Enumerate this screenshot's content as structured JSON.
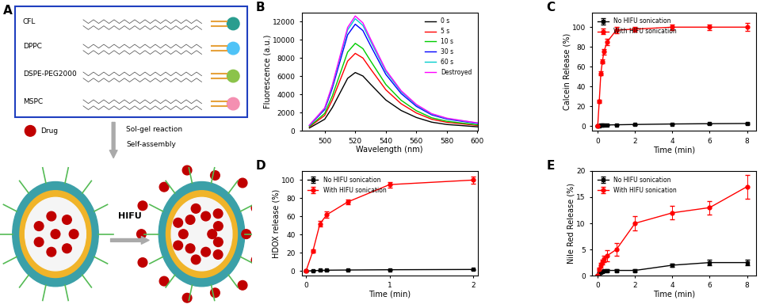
{
  "diagram": {
    "panel": "A",
    "components": [
      "CFL",
      "DPPC",
      "DSPE-PEG2000",
      "MSPC"
    ],
    "drug": "Drug",
    "process": [
      "Sol-gel reaction",
      "Self-assembly"
    ],
    "trigger": "HIFU"
  },
  "chart_data": [
    {
      "panel": "B",
      "type": "line",
      "x_label": "Wavelength (nm)",
      "y_label": "Fluorescence (a.u.)",
      "x": [
        490,
        500,
        505,
        510,
        515,
        520,
        525,
        530,
        540,
        550,
        560,
        570,
        580,
        590,
        600
      ],
      "xlim": [
        485,
        600
      ],
      "xticks": [
        500,
        520,
        540,
        560,
        580,
        600
      ],
      "ylim": [
        0,
        13000
      ],
      "yticks": [
        0,
        2000,
        4000,
        6000,
        8000,
        10000,
        12000
      ],
      "legend": "upper right",
      "marker": "none",
      "series": [
        {
          "name": "0 s",
          "color": "#000000",
          "values": [
            320,
            1280,
            2560,
            4160,
            5760,
            6400,
            6020,
            5120,
            3390,
            2240,
            1470,
            960,
            700,
            580,
            450
          ]
        },
        {
          "name": "5 s",
          "color": "#ff0000",
          "values": [
            430,
            1700,
            3400,
            5530,
            7650,
            8500,
            7990,
            6800,
            4510,
            2980,
            1960,
            1280,
            940,
            770,
            600
          ]
        },
        {
          "name": "10 s",
          "color": "#00cc00",
          "values": [
            480,
            1920,
            3840,
            6240,
            8640,
            9600,
            9020,
            7680,
            5090,
            3360,
            2210,
            1440,
            1060,
            860,
            670
          ]
        },
        {
          "name": "30 s",
          "color": "#0000ff",
          "values": [
            590,
            2340,
            4680,
            7610,
            10530,
            11700,
            11000,
            9360,
            6200,
            4100,
            2690,
            1760,
            1290,
            1050,
            820
          ]
        },
        {
          "name": "60 s",
          "color": "#00cccc",
          "values": [
            620,
            2460,
            4920,
            8000,
            11070,
            12300,
            11560,
            9840,
            6520,
            4310,
            2830,
            1850,
            1350,
            1110,
            860
          ]
        },
        {
          "name": "Destroyed",
          "color": "#ff00ff",
          "values": [
            630,
            2520,
            5040,
            8190,
            11340,
            12600,
            11840,
            10080,
            6680,
            4410,
            2900,
            1890,
            1390,
            1130,
            880
          ]
        }
      ]
    },
    {
      "panel": "C",
      "type": "line",
      "x_label": "Time (min)",
      "y_label": "Calcein Release (%)",
      "x": [
        0,
        0.083,
        0.167,
        0.25,
        0.33,
        0.5,
        1,
        2,
        4,
        6,
        8
      ],
      "xlim": [
        -0.3,
        8.5
      ],
      "xticks": [
        0,
        2,
        4,
        6,
        8
      ],
      "ylim": [
        -5,
        115
      ],
      "yticks": [
        0,
        20,
        40,
        60,
        80,
        100
      ],
      "legend": "upper left",
      "series": [
        {
          "name": "No HIFU sonication",
          "color": "#000000",
          "marker": "square",
          "values": [
            0,
            0.3,
            0.5,
            0.7,
            0.8,
            1,
            1.2,
            1.5,
            2,
            2.3,
            2.5
          ],
          "error": [
            0.2,
            0.2,
            0.2,
            0.3,
            0.3,
            0.3,
            0.3,
            0.4,
            0.4,
            0.5,
            0.5
          ]
        },
        {
          "name": "With HIFU sonication",
          "color": "#ff0000",
          "marker": "circle",
          "values": [
            0,
            25,
            53,
            65,
            75,
            85,
            97,
            98,
            100,
            100,
            100
          ],
          "error": [
            0.5,
            1.5,
            2,
            2,
            2.5,
            3,
            3,
            2.5,
            3,
            3,
            4
          ]
        }
      ]
    },
    {
      "panel": "D",
      "type": "line",
      "x_label": "Time (min)",
      "y_label": "HDOX release (%)",
      "x": [
        0,
        0.083,
        0.167,
        0.25,
        0.5,
        1,
        2
      ],
      "xlim": [
        -0.05,
        2.05
      ],
      "xticks": [
        0,
        1,
        2
      ],
      "ylim": [
        -5,
        110
      ],
      "yticks": [
        0,
        20,
        40,
        60,
        80,
        100
      ],
      "legend": "upper left",
      "series": [
        {
          "name": "No HIFU sonication",
          "color": "#000000",
          "marker": "square",
          "values": [
            0,
            0.5,
            0.8,
            1,
            1.2,
            1.5,
            1.8
          ],
          "error": [
            0.2,
            0.2,
            0.2,
            0.3,
            0.3,
            0.3,
            0.4
          ]
        },
        {
          "name": "With HIFU sonication",
          "color": "#ff0000",
          "marker": "circle",
          "values": [
            0,
            22,
            52,
            62,
            76,
            95,
            100
          ],
          "error": [
            0.5,
            2,
            3,
            3.5,
            2.5,
            3,
            4
          ]
        }
      ]
    },
    {
      "panel": "E",
      "type": "line",
      "x_label": "Time (min)",
      "y_label": "Nile Red Release (%)",
      "x": [
        0,
        0.083,
        0.167,
        0.25,
        0.33,
        0.5,
        1,
        2,
        4,
        6,
        8
      ],
      "xlim": [
        -0.3,
        8.5
      ],
      "xticks": [
        0,
        2,
        4,
        6,
        8
      ],
      "ylim": [
        0,
        20
      ],
      "yticks": [
        0,
        5,
        10,
        15,
        20
      ],
      "legend": "upper left",
      "series": [
        {
          "name": "No HIFU sonication",
          "color": "#000000",
          "marker": "square",
          "values": [
            0,
            0.5,
            0.7,
            0.8,
            0.9,
            1,
            1,
            1,
            2,
            2.5,
            2.5
          ],
          "error": [
            0.1,
            0.1,
            0.1,
            0.1,
            0.1,
            0.2,
            0.2,
            0.2,
            0.3,
            0.5,
            0.5
          ]
        },
        {
          "name": "With HIFU sonication",
          "color": "#ff0000",
          "marker": "circle",
          "values": [
            0,
            1.2,
            2.0,
            2.6,
            3.2,
            3.8,
            5,
            10,
            12,
            13,
            17
          ],
          "error": [
            0.2,
            0.3,
            0.4,
            0.5,
            0.6,
            1,
            1.2,
            1.4,
            1.3,
            1.3,
            2.3
          ]
        }
      ]
    }
  ]
}
